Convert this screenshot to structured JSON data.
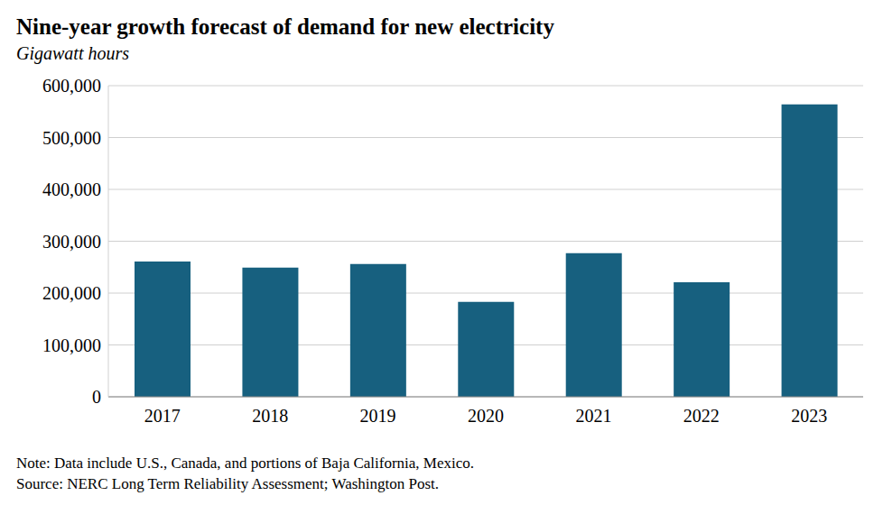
{
  "chart_data": {
    "type": "bar",
    "title": "Nine-year growth forecast of demand for new electricity",
    "subtitle": "Gigawatt hours",
    "categories": [
      "2017",
      "2018",
      "2019",
      "2020",
      "2021",
      "2022",
      "2023"
    ],
    "values": [
      261000,
      249000,
      256000,
      183000,
      277000,
      221000,
      564000
    ],
    "color": "#17607f",
    "ylim": [
      0,
      600000
    ],
    "yticks": [
      0,
      {
        "value": 100000,
        "label": "100,000"
      },
      {
        "value": 200000,
        "label": "200,000"
      },
      {
        "value": 300000,
        "label": "300,000"
      },
      {
        "value": 400000,
        "label": "400,000"
      },
      {
        "value": 500000,
        "label": "500,000"
      },
      {
        "value": 600000,
        "label": "600,000"
      }
    ],
    "grid": true,
    "notes": [
      "Note: Data include U.S., Canada, and portions of Baja California, Mexico.",
      "Source: NERC Long Term Reliability Assessment; Washington Post."
    ]
  }
}
